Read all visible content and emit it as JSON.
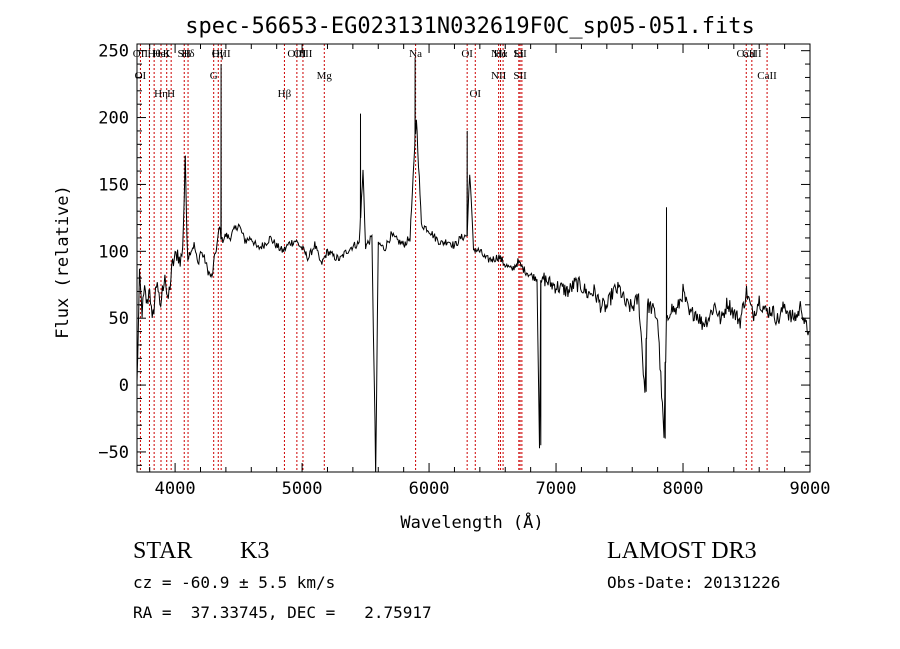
{
  "chart_data": {
    "type": "line",
    "title": "spec-56653-EG023131N032619F0C_sp05-051.fits",
    "xlabel": "Wavelength (Å)",
    "ylabel": "Flux (relative)",
    "xlim": [
      3700,
      9000
    ],
    "ylim": [
      -65,
      255
    ],
    "xticks": [
      4000,
      5000,
      6000,
      7000,
      8000,
      9000
    ],
    "yticks": [
      -50,
      0,
      50,
      100,
      150,
      200,
      250
    ],
    "grid": false,
    "series": [
      {
        "color": "#000000",
        "x": [
          3700,
          3720,
          3740,
          3760,
          3780,
          3800,
          3820,
          3840,
          3860,
          3880,
          3900,
          3920,
          3940,
          3960,
          3980,
          4000,
          4020,
          4040,
          4060,
          4080,
          4100,
          4120,
          4150,
          4180,
          4200,
          4230,
          4260,
          4290,
          4310,
          4330,
          4350,
          4370,
          4400,
          4430,
          4460,
          4500,
          4550,
          4600,
          4650,
          4700,
          4750,
          4800,
          4850,
          4900,
          4950,
          5000,
          5050,
          5100,
          5150,
          5200,
          5250,
          5300,
          5350,
          5400,
          5450,
          5480,
          5500,
          5550,
          5580,
          5600,
          5650,
          5700,
          5750,
          5800,
          5850,
          5900,
          5940,
          6000,
          6050,
          6100,
          6150,
          6200,
          6250,
          6300,
          6320,
          6350,
          6400,
          6450,
          6500,
          6550,
          6600,
          6650,
          6700,
          6750,
          6800,
          6850,
          6870,
          6880,
          6900,
          6950,
          7000,
          7050,
          7100,
          7150,
          7200,
          7250,
          7300,
          7350,
          7400,
          7450,
          7500,
          7550,
          7600,
          7650,
          7700,
          7720,
          7750,
          7800,
          7850,
          7870,
          7900,
          7950,
          8000,
          8050,
          8100,
          8150,
          8200,
          8250,
          8300,
          8350,
          8400,
          8450,
          8500,
          8550,
          8600,
          8650,
          8700,
          8750,
          8800,
          8850,
          8900,
          8930,
          8960,
          8990
        ],
        "y": [
          0,
          80,
          55,
          70,
          60,
          75,
          45,
          65,
          80,
          55,
          70,
          85,
          60,
          75,
          90,
          95,
          100,
          90,
          105,
          165,
          95,
          100,
          105,
          90,
          100,
          95,
          85,
          80,
          95,
          105,
          118,
          108,
          112,
          110,
          115,
          120,
          108,
          110,
          102,
          105,
          110,
          104,
          100,
          106,
          108,
          102,
          95,
          105,
          90,
          100,
          96,
          94,
          100,
          104,
          106,
          160,
          104,
          110,
          -65,
          106,
          102,
          112,
          108,
          105,
          110,
          200,
          120,
          116,
          110,
          106,
          108,
          104,
          110,
          112,
          160,
          102,
          100,
          94,
          94,
          96,
          90,
          86,
          92,
          86,
          82,
          80,
          -45,
          75,
          80,
          76,
          74,
          72,
          70,
          76,
          74,
          68,
          70,
          60,
          58,
          70,
          72,
          60,
          58,
          65,
          -5,
          60,
          58,
          50,
          -40,
          45,
          58,
          55,
          70,
          52,
          55,
          46,
          50,
          60,
          48,
          62,
          54,
          48,
          70,
          52,
          64,
          55,
          56,
          48,
          60,
          50,
          52,
          60,
          45,
          40
        ],
        "spikes": [
          {
            "x": 4080,
            "y": 165
          },
          {
            "x": 4362,
            "y": 240
          },
          {
            "x": 5460,
            "y": 203
          },
          {
            "x": 5580,
            "y": -65
          },
          {
            "x": 5890,
            "y": 245
          },
          {
            "x": 6300,
            "y": 190
          },
          {
            "x": 6880,
            "y": -45
          },
          {
            "x": 7710,
            "y": -5
          },
          {
            "x": 7860,
            "y": -40
          },
          {
            "x": 7870,
            "y": 133
          }
        ]
      }
    ],
    "lines": [
      {
        "x": 3727,
        "top": "OII",
        "bottom": "OI"
      },
      {
        "x": 3798,
        "top": "",
        "bottom": ""
      },
      {
        "x": 3835,
        "top": "Hθ",
        "bottom": ""
      },
      {
        "x": 3889,
        "top": "HeI",
        "bottom": "Hη"
      },
      {
        "x": 3934,
        "top": "K",
        "bottom": ""
      },
      {
        "x": 3969,
        "top": "",
        "bottom": "H"
      },
      {
        "x": 4072,
        "top": "SII",
        "bottom": ""
      },
      {
        "x": 4102,
        "top": "Hδ",
        "bottom": ""
      },
      {
        "x": 4304,
        "top": "",
        "bottom": "G"
      },
      {
        "x": 4340,
        "top": "Hγ",
        "bottom": ""
      },
      {
        "x": 4363,
        "top": "OIII",
        "bottom": ""
      },
      {
        "x": 4861,
        "top": "",
        "bottom": "Hβ"
      },
      {
        "x": 4959,
        "top": "OIII",
        "bottom": ""
      },
      {
        "x": 5007,
        "top": "OIII",
        "bottom": ""
      },
      {
        "x": 5175,
        "top": "",
        "bottom": "Mg"
      },
      {
        "x": 5894,
        "top": "Na",
        "bottom": ""
      },
      {
        "x": 6300,
        "top": "OI",
        "bottom": ""
      },
      {
        "x": 6364,
        "top": "",
        "bottom": "OI"
      },
      {
        "x": 6548,
        "top": "NII",
        "bottom": "NII"
      },
      {
        "x": 6563,
        "top": "Hα",
        "bottom": ""
      },
      {
        "x": 6583,
        "top": "",
        "bottom": ""
      },
      {
        "x": 6707,
        "top": "Li",
        "bottom": ""
      },
      {
        "x": 6717,
        "top": "SII",
        "bottom": "SII"
      },
      {
        "x": 6731,
        "top": "",
        "bottom": ""
      },
      {
        "x": 8498,
        "top": "CaII",
        "bottom": ""
      },
      {
        "x": 8542,
        "top": "CaII",
        "bottom": ""
      },
      {
        "x": 8662,
        "top": "",
        "bottom": "CaII"
      }
    ],
    "line_color": "#cc0000"
  },
  "info": {
    "class": "STAR",
    "subclass": "K3",
    "survey": "LAMOST DR3",
    "cz": "cz = -60.9 ± 5.5 km/s",
    "obs_date": "Obs-Date: 20131226",
    "radec": "RA =  37.33745, DEC =   2.75917"
  }
}
